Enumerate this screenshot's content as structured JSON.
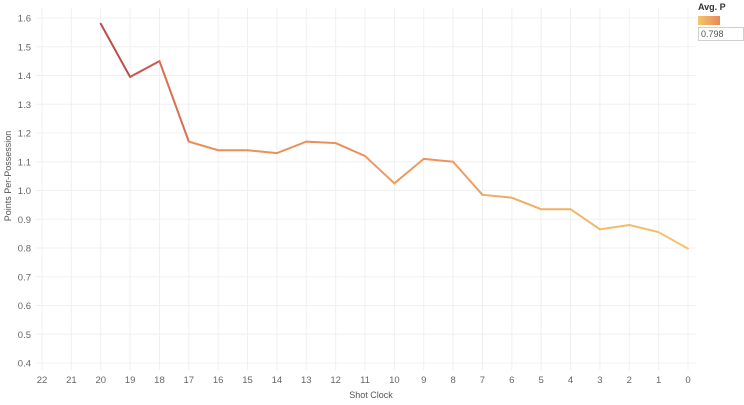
{
  "chart_data": {
    "type": "line",
    "xlabel": "Shot Clock",
    "ylabel": "Points Per-Possession",
    "x_ticks": [
      "22",
      "21",
      "20",
      "19",
      "18",
      "17",
      "16",
      "15",
      "14",
      "13",
      "12",
      "11",
      "10",
      "9",
      "8",
      "7",
      "6",
      "5",
      "4",
      "3",
      "2",
      "1",
      "0"
    ],
    "y_ticks": [
      "0.4",
      "0.5",
      "0.6",
      "0.7",
      "0.8",
      "0.9",
      "1.0",
      "1.1",
      "1.2",
      "1.3",
      "1.4",
      "1.5",
      "1.6"
    ],
    "ylim": [
      0.4,
      1.65
    ],
    "xlim": [
      22,
      0
    ],
    "grid": true,
    "series": [
      {
        "x": [
          20,
          19,
          18,
          17,
          16,
          15,
          14,
          13,
          12,
          11,
          10,
          9,
          8,
          7,
          6,
          5,
          4,
          3,
          2,
          1,
          0
        ],
        "y": [
          1.58,
          1.395,
          1.45,
          1.17,
          1.14,
          1.14,
          1.13,
          1.17,
          1.165,
          1.12,
          1.025,
          1.11,
          1.1,
          0.985,
          0.975,
          0.935,
          0.935,
          0.865,
          0.88,
          0.855,
          0.798
        ]
      }
    ],
    "color_scale": [
      "#f5c76a",
      "#e8875a",
      "#b03a48"
    ],
    "legend": {
      "title": "Avg. P",
      "min_label": "0.798",
      "placement": "top-right"
    }
  }
}
